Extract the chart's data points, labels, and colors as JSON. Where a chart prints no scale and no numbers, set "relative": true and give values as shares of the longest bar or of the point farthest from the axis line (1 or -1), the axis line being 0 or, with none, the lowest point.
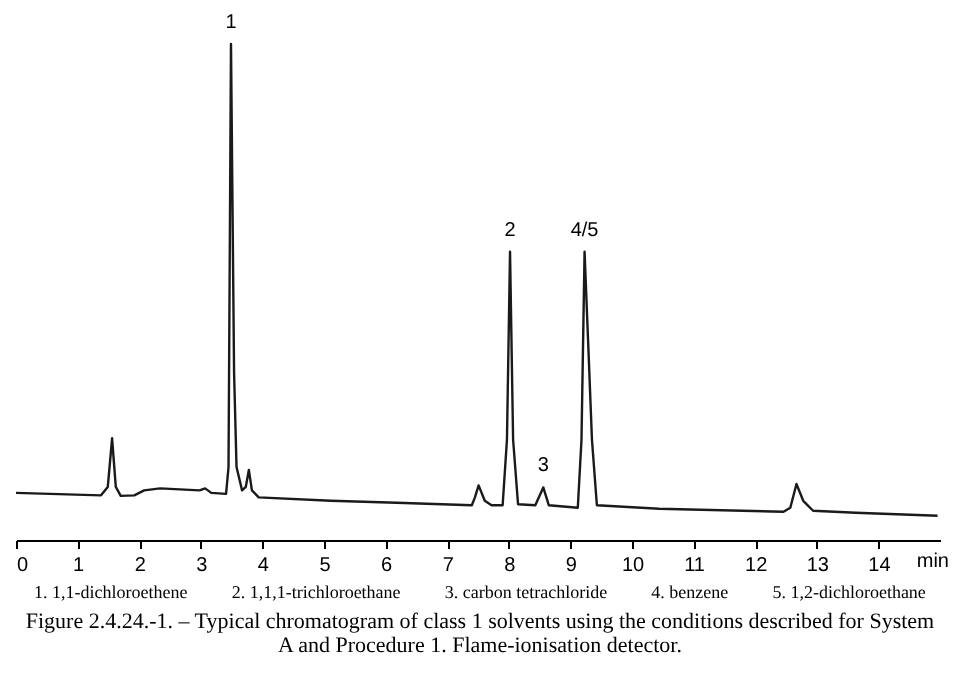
{
  "chart_data": {
    "type": "line",
    "relative": true,
    "xlabel": "min",
    "xlim": [
      0,
      15
    ],
    "xticks": [
      0,
      1,
      2,
      3,
      4,
      5,
      6,
      7,
      8,
      9,
      10,
      11,
      12,
      13,
      14
    ],
    "grid": false,
    "marker": "none",
    "line_style": "solid",
    "series": [
      {
        "color": "#1a1a1a",
        "x": [
          0,
          1.38,
          1.49,
          1.56,
          1.62,
          1.7,
          1.92,
          2.08,
          2.34,
          2.98,
          3.07,
          3.17,
          3.41,
          3.45,
          3.49,
          3.54,
          3.58,
          3.67,
          3.73,
          3.78,
          3.83,
          3.94,
          5.11,
          6.18,
          7.4,
          7.45,
          7.51,
          7.61,
          7.72,
          7.9,
          7.97,
          8.02,
          8.07,
          8.15,
          8.43,
          8.56,
          8.65,
          9.12,
          9.18,
          9.23,
          9.29,
          9.35,
          9.43,
          10.44,
          12.46,
          12.57,
          12.67,
          12.78,
          12.94,
          13.63,
          14.96
        ],
        "values": [
          0.095,
          0.09,
          0.107,
          0.205,
          0.107,
          0.089,
          0.09,
          0.1,
          0.104,
          0.1,
          0.104,
          0.095,
          0.093,
          0.147,
          1.0,
          0.338,
          0.147,
          0.1,
          0.107,
          0.141,
          0.1,
          0.086,
          0.079,
          0.075,
          0.07,
          0.086,
          0.11,
          0.079,
          0.07,
          0.07,
          0.202,
          0.581,
          0.202,
          0.072,
          0.07,
          0.106,
          0.07,
          0.065,
          0.202,
          0.581,
          0.393,
          0.202,
          0.07,
          0.063,
          0.057,
          0.065,
          0.113,
          0.079,
          0.059,
          0.055,
          0.049
        ]
      }
    ],
    "annotations": [
      {
        "text": "1",
        "x": 3.49,
        "y": 1.0
      },
      {
        "text": "2",
        "x": 8.02,
        "y": 0.581
      },
      {
        "text": "3",
        "x": 8.56,
        "y": 0.106
      },
      {
        "text": "4/5",
        "x": 9.23,
        "y": 0.581
      },
      "1. 1,1-dichloroethene",
      "2. 1,1,1-trichloroethane",
      "3. carbon tetrachloride",
      "4. benzene",
      "5. 1,2-dichloroethane",
      "Figure 2.4.24.-1. – Typical chromatogram of class 1 solvents using the conditions described for System A and Procedure 1. Flame-ionisation detector."
    ]
  }
}
